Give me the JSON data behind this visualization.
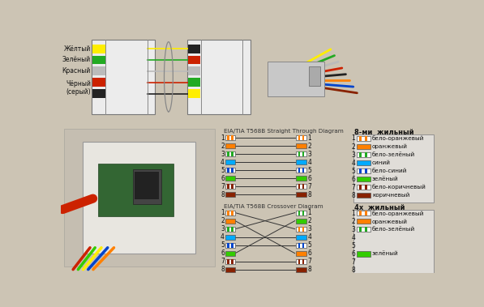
{
  "bg_color": "#ccc4b4",
  "wire_colors_8": [
    {
      "name": "бело-оранжевый",
      "base": "#ffffff",
      "stripe": "#ff8000"
    },
    {
      "name": "оранжевый",
      "base": "#ff8000",
      "stripe": null
    },
    {
      "name": "бело-зелёный",
      "base": "#ffffff",
      "stripe": "#22aa22"
    },
    {
      "name": "синий",
      "base": "#00aaff",
      "stripe": null
    },
    {
      "name": "бело-синий",
      "base": "#ffffff",
      "stripe": "#0044cc"
    },
    {
      "name": "зелёный",
      "base": "#33cc00",
      "stripe": null
    },
    {
      "name": "бело-коричневый",
      "base": "#ffffff",
      "stripe": "#882200"
    },
    {
      "name": "коричневый",
      "base": "#882200",
      "stripe": null
    }
  ],
  "wire_colors_4": [
    {
      "name": "бело-оранжевый",
      "base": "#ffffff",
      "stripe": "#ff8000"
    },
    {
      "name": "оранжевый",
      "base": "#ff8000",
      "stripe": null
    },
    {
      "name": "бело-зелёный",
      "base": "#ffffff",
      "stripe": "#22aa22"
    },
    {
      "name": "",
      "base": null,
      "stripe": null
    },
    {
      "name": "",
      "base": null,
      "stripe": null
    },
    {
      "name": "зелёный",
      "base": "#33cc00",
      "stripe": null
    },
    {
      "name": "",
      "base": null,
      "stripe": null
    },
    {
      "name": "",
      "base": null,
      "stripe": null
    }
  ],
  "straight_left": [
    0,
    1,
    2,
    3,
    4,
    5,
    6,
    7
  ],
  "straight_right": [
    0,
    1,
    2,
    3,
    4,
    5,
    6,
    7
  ],
  "crossover_map": [
    2,
    5,
    0,
    3,
    4,
    1,
    6,
    7
  ],
  "top_wires_left": [
    "#ffee00",
    "#22aa22",
    "#bbbbbb",
    "#cc2200",
    "#222222"
  ],
  "top_wires_right": [
    "#222222",
    "#cc2200",
    "#bbbbbb",
    "#22aa22",
    "#ffee00"
  ],
  "top_labels": [
    "Жёлтый",
    "Зелёный",
    "Красный",
    "Чёрный\n(серый)"
  ],
  "straight_title": "EIA/TIA T568B Straight Through Diagram",
  "crossover_title": "EIA/TIA T568B Crossover Diagram",
  "legend8_title": "8-ми  жильный",
  "legend4_title": "4х  жильный"
}
